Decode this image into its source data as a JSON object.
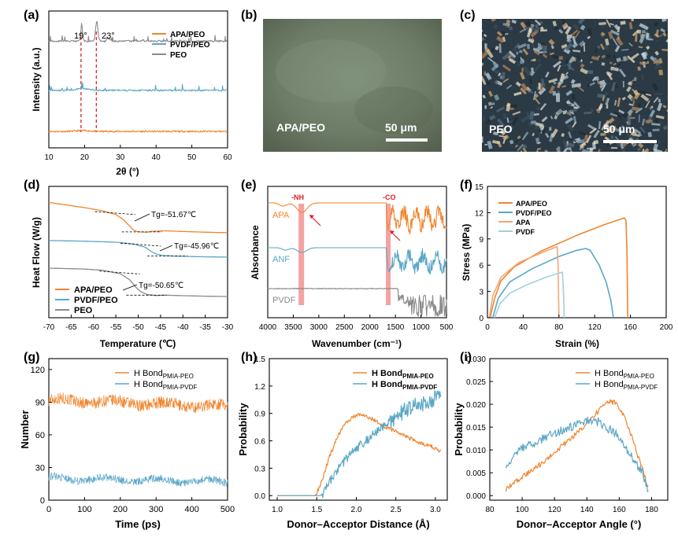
{
  "colors": {
    "orange": "#f0852e",
    "blue": "#5aa7c6",
    "gray": "#8a8a8a",
    "red_dash": "#e0302b",
    "band": "#f28b8b",
    "arrow": "#e02020",
    "peach": "#f4a674",
    "lightblue": "#9fd0e4"
  },
  "chart_data": [
    {
      "id": "a",
      "panel_label": "(a)",
      "type": "line",
      "title": "",
      "xlabel": "2θ (°)",
      "ylabel": "Intensity (a.u.)",
      "xlim": [
        10,
        60
      ],
      "xticks": [
        "10",
        "20",
        "30",
        "40",
        "50",
        "60"
      ],
      "annotations": [
        "19°",
        "23°"
      ],
      "dashed_lines_x": [
        19,
        23.3
      ],
      "legend": [
        "APA/PEO",
        "PVDF/PEO",
        "PEO"
      ],
      "series": [
        {
          "name": "APA/PEO",
          "color": "orange",
          "baseline": 0.12,
          "peaks": [
            [
              19.5,
              0.035,
              2.5
            ]
          ]
        },
        {
          "name": "PVDF/PEO",
          "color": "blue",
          "baseline": 0.42,
          "peaks": [
            [
              19.5,
              0.07,
              2.5
            ]
          ]
        },
        {
          "name": "PEO",
          "color": "gray",
          "baseline": 0.78,
          "peaks": [
            [
              19.2,
              0.62,
              0.35
            ],
            [
              23.4,
              0.8,
              0.45
            ],
            [
              26.3,
              0.12,
              0.3
            ],
            [
              27,
              0.1,
              0.3
            ],
            [
              36.3,
              0.07,
              0.3
            ]
          ]
        }
      ]
    },
    {
      "id": "d",
      "panel_label": "(d)",
      "type": "line",
      "xlabel": "Temperature (℃)",
      "ylabel": "Heat Flow (W/g)",
      "xlim": [
        -70,
        -30
      ],
      "xticks": [
        "-70",
        "-65",
        "-60",
        "-55",
        "-50",
        "-45",
        "-40",
        "-35",
        "-30"
      ],
      "legend": [
        "APA/PEO",
        "PVDF/PEO",
        "PEO"
      ],
      "tg_labels": [
        "Tg=-51.67℃",
        "Tg=-45.96℃",
        "Tg=-50.65℃"
      ],
      "series": [
        {
          "name": "APA/PEO",
          "color": "orange",
          "points": [
            [
              -70,
              3.3
            ],
            [
              -66,
              3.15
            ],
            [
              -62,
              3.0
            ],
            [
              -58,
              2.82
            ],
            [
              -55,
              2.6
            ],
            [
              -53.5,
              2.35
            ],
            [
              -52,
              1.95
            ],
            [
              -51,
              1.7
            ],
            [
              -50,
              1.6
            ],
            [
              -48,
              1.58
            ],
            [
              -47,
              1.63
            ],
            [
              -44,
              1.66
            ],
            [
              -40,
              1.62
            ],
            [
              -35,
              1.58
            ],
            [
              -30,
              1.55
            ]
          ],
          "tg": -51.67
        },
        {
          "name": "PVDF/PEO",
          "color": "blue",
          "points": [
            [
              -70,
              1.1
            ],
            [
              -62,
              1.06
            ],
            [
              -55,
              1.0
            ],
            [
              -51,
              0.9
            ],
            [
              -48.5,
              0.72
            ],
            [
              -47,
              0.45
            ],
            [
              -46,
              0.32
            ],
            [
              -44.5,
              0.23
            ],
            [
              -42,
              0.2
            ],
            [
              -36,
              0.16
            ],
            [
              -30,
              0.14
            ]
          ],
          "tg": -45.96
        },
        {
          "name": "PEO",
          "color": "gray",
          "points": [
            [
              -70,
              -0.5
            ],
            [
              -62,
              -0.55
            ],
            [
              -58,
              -0.62
            ],
            [
              -54,
              -0.82
            ],
            [
              -52,
              -1.15
            ],
            [
              -50.5,
              -1.6
            ],
            [
              -49.5,
              -1.85
            ],
            [
              -48,
              -2.02
            ],
            [
              -46,
              -2.08
            ],
            [
              -44,
              -2.06
            ],
            [
              -40,
              -2.09
            ],
            [
              -35,
              -2.12
            ],
            [
              -30,
              -2.14
            ]
          ],
          "tg": -50.65
        }
      ]
    },
    {
      "id": "e",
      "panel_label": "(e)",
      "type": "line",
      "xlabel": "Wavenumber (cm⁻¹)",
      "ylabel": "Absorbance",
      "xlim": [
        4000,
        500
      ],
      "xticks": [
        "4000",
        "3500",
        "3000",
        "2500",
        "2000",
        "1500",
        "1000",
        "500"
      ],
      "band_labels": [
        "-NH",
        "-CO"
      ],
      "bands": [
        3350,
        1640
      ],
      "series_labels": [
        "APA",
        "ANF",
        "PVDF"
      ],
      "series": [
        {
          "name": "APA",
          "color": "orange"
        },
        {
          "name": "ANF",
          "color": "blue"
        },
        {
          "name": "PVDF",
          "color": "gray"
        }
      ]
    },
    {
      "id": "f",
      "panel_label": "(f)",
      "type": "line",
      "xlabel": "Strain (%)",
      "ylabel": "Stress (MPa)",
      "xlim": [
        0,
        200
      ],
      "ylim": [
        0,
        15
      ],
      "xticks": [
        "0",
        "40",
        "80",
        "120",
        "160",
        "200"
      ],
      "yticks": [
        "0",
        "3",
        "6",
        "9",
        "12",
        "15"
      ],
      "legend": [
        "APA/PEO",
        "PVDF/PEO",
        "APA",
        "PVDF"
      ],
      "series": [
        {
          "name": "APA/PEO",
          "color": "orange",
          "points": [
            [
              3,
              0
            ],
            [
              8,
              2.2
            ],
            [
              15,
              4.2
            ],
            [
              30,
              5.8
            ],
            [
              60,
              7.6
            ],
            [
              100,
              9.4
            ],
            [
              130,
              10.6
            ],
            [
              150,
              11.3
            ],
            [
              153,
              11.4
            ],
            [
              155,
              11.1
            ],
            [
              156,
              8
            ],
            [
              157,
              0
            ]
          ]
        },
        {
          "name": "PVDF/PEO",
          "color": "blue",
          "points": [
            [
              6,
              0
            ],
            [
              12,
              2.2
            ],
            [
              25,
              4.1
            ],
            [
              50,
              5.6
            ],
            [
              80,
              7.0
            ],
            [
              100,
              7.7
            ],
            [
              110,
              7.9
            ],
            [
              115,
              7.7
            ],
            [
              125,
              6.0
            ],
            [
              133,
              4.0
            ],
            [
              138,
              2.0
            ],
            [
              141,
              0
            ]
          ]
        },
        {
          "name": "APA",
          "color": "peach",
          "points": [
            [
              2,
              0
            ],
            [
              6,
              2.5
            ],
            [
              15,
              4.6
            ],
            [
              35,
              6.3
            ],
            [
              60,
              7.4
            ],
            [
              75,
              8.0
            ],
            [
              78,
              8.1
            ],
            [
              79,
              6
            ],
            [
              80,
              0
            ]
          ]
        },
        {
          "name": "PVDF",
          "color": "lightblue",
          "points": [
            [
              8,
              0
            ],
            [
              14,
              1.6
            ],
            [
              25,
              2.8
            ],
            [
              45,
              3.8
            ],
            [
              65,
              4.6
            ],
            [
              80,
              5.1
            ],
            [
              84,
              5.2
            ],
            [
              85,
              3
            ],
            [
              86,
              0
            ]
          ]
        }
      ]
    },
    {
      "id": "g",
      "panel_label": "(g)",
      "type": "line",
      "xlabel": "Time (ps)",
      "ylabel": "Number",
      "xlim": [
        0,
        500
      ],
      "ylim": [
        0,
        130
      ],
      "xticks": [
        "0",
        "100",
        "200",
        "300",
        "400",
        "500"
      ],
      "yticks": [
        "0",
        "30",
        "60",
        "90",
        "120"
      ],
      "legend_base": "H Bond",
      "legend_subs": [
        "PMIA-PEO",
        "PMIA-PVDF"
      ],
      "series": [
        {
          "name": "PMIA-PEO",
          "color": "orange",
          "mean": 92,
          "trend": -6,
          "noise": 5.5
        },
        {
          "name": "PMIA-PVDF",
          "color": "blue",
          "mean": 20,
          "trend": -3,
          "noise": 3.5
        }
      ]
    },
    {
      "id": "h",
      "panel_label": "(h)",
      "type": "line",
      "xlabel": "Donor–Acceptor Distance (Å)",
      "ylabel": "Probability",
      "xlim": [
        0.9,
        3.15
      ],
      "ylim": [
        -0.05,
        1.5
      ],
      "xticks": [
        "1.0",
        "1.5",
        "2.0",
        "2.5",
        "3.0"
      ],
      "yticks": [
        "0.0",
        "0.3",
        "0.6",
        "0.9",
        "1.2",
        "1.5"
      ],
      "legend_base": "H Bond",
      "legend_subs": [
        "PMIA-PEO",
        "PMIA-PVDF"
      ],
      "series": [
        {
          "name": "PMIA-PEO",
          "color": "orange",
          "points": [
            [
              1.0,
              0
            ],
            [
              1.48,
              0
            ],
            [
              1.55,
              0.12
            ],
            [
              1.65,
              0.4
            ],
            [
              1.75,
              0.62
            ],
            [
              1.85,
              0.78
            ],
            [
              1.95,
              0.86
            ],
            [
              2.05,
              0.89
            ],
            [
              2.2,
              0.84
            ],
            [
              2.35,
              0.76
            ],
            [
              2.5,
              0.7
            ],
            [
              2.65,
              0.64
            ],
            [
              2.8,
              0.58
            ],
            [
              2.95,
              0.54
            ],
            [
              3.08,
              0.48
            ]
          ],
          "noise": 0.02
        },
        {
          "name": "PMIA-PVDF",
          "color": "blue",
          "points": [
            [
              1.0,
              0
            ],
            [
              1.55,
              0
            ],
            [
              1.6,
              0.05
            ],
            [
              1.7,
              0.2
            ],
            [
              1.85,
              0.38
            ],
            [
              2.0,
              0.52
            ],
            [
              2.15,
              0.62
            ],
            [
              2.3,
              0.72
            ],
            [
              2.45,
              0.82
            ],
            [
              2.6,
              0.92
            ],
            [
              2.75,
              0.98
            ],
            [
              2.9,
              1.04
            ],
            [
              3.08,
              1.08
            ]
          ],
          "noise": 0.05
        }
      ]
    },
    {
      "id": "i",
      "panel_label": "(i)",
      "type": "line",
      "xlabel": "Donor–Acceptor Angle (°)",
      "ylabel": "Probability",
      "xlim": [
        80,
        190
      ],
      "ylim": [
        -0.001,
        0.03
      ],
      "xticks": [
        "80",
        "100",
        "120",
        "140",
        "160",
        "180"
      ],
      "yticks": [
        "0.000",
        "0.005",
        "0.010",
        "0.015",
        "0.020",
        "0.025",
        "0.030"
      ],
      "legend_base": "H Bond",
      "legend_subs": [
        "PMIA-PEO",
        "PMIA-PVDF"
      ],
      "series": [
        {
          "name": "PMIA-PEO",
          "color": "orange",
          "points": [
            [
              90,
              0.0015
            ],
            [
              100,
              0.004
            ],
            [
              110,
              0.0065
            ],
            [
              120,
              0.0095
            ],
            [
              130,
              0.0125
            ],
            [
              140,
              0.0155
            ],
            [
              148,
              0.019
            ],
            [
              153,
              0.0205
            ],
            [
              158,
              0.0205
            ],
            [
              163,
              0.0175
            ],
            [
              168,
              0.0125
            ],
            [
              173,
              0.007
            ],
            [
              178,
              0.0018
            ]
          ],
          "noise": 0.0006
        },
        {
          "name": "PMIA-PVDF",
          "color": "blue",
          "points": [
            [
              90,
              0.007
            ],
            [
              100,
              0.0105
            ],
            [
              110,
              0.012
            ],
            [
              120,
              0.0135
            ],
            [
              130,
              0.015
            ],
            [
              140,
              0.0165
            ],
            [
              145,
              0.0165
            ],
            [
              150,
              0.0155
            ],
            [
              158,
              0.0135
            ],
            [
              165,
              0.01
            ],
            [
              170,
              0.0075
            ],
            [
              175,
              0.0045
            ],
            [
              178,
              0.001
            ]
          ],
          "noise": 0.001
        }
      ]
    }
  ],
  "micrographs": [
    {
      "panel_label": "(b)",
      "caption": "APA/PEO",
      "scalebar": "50 μm"
    },
    {
      "panel_label": "(c)",
      "caption": "PEO",
      "scalebar": "50 μm"
    }
  ]
}
